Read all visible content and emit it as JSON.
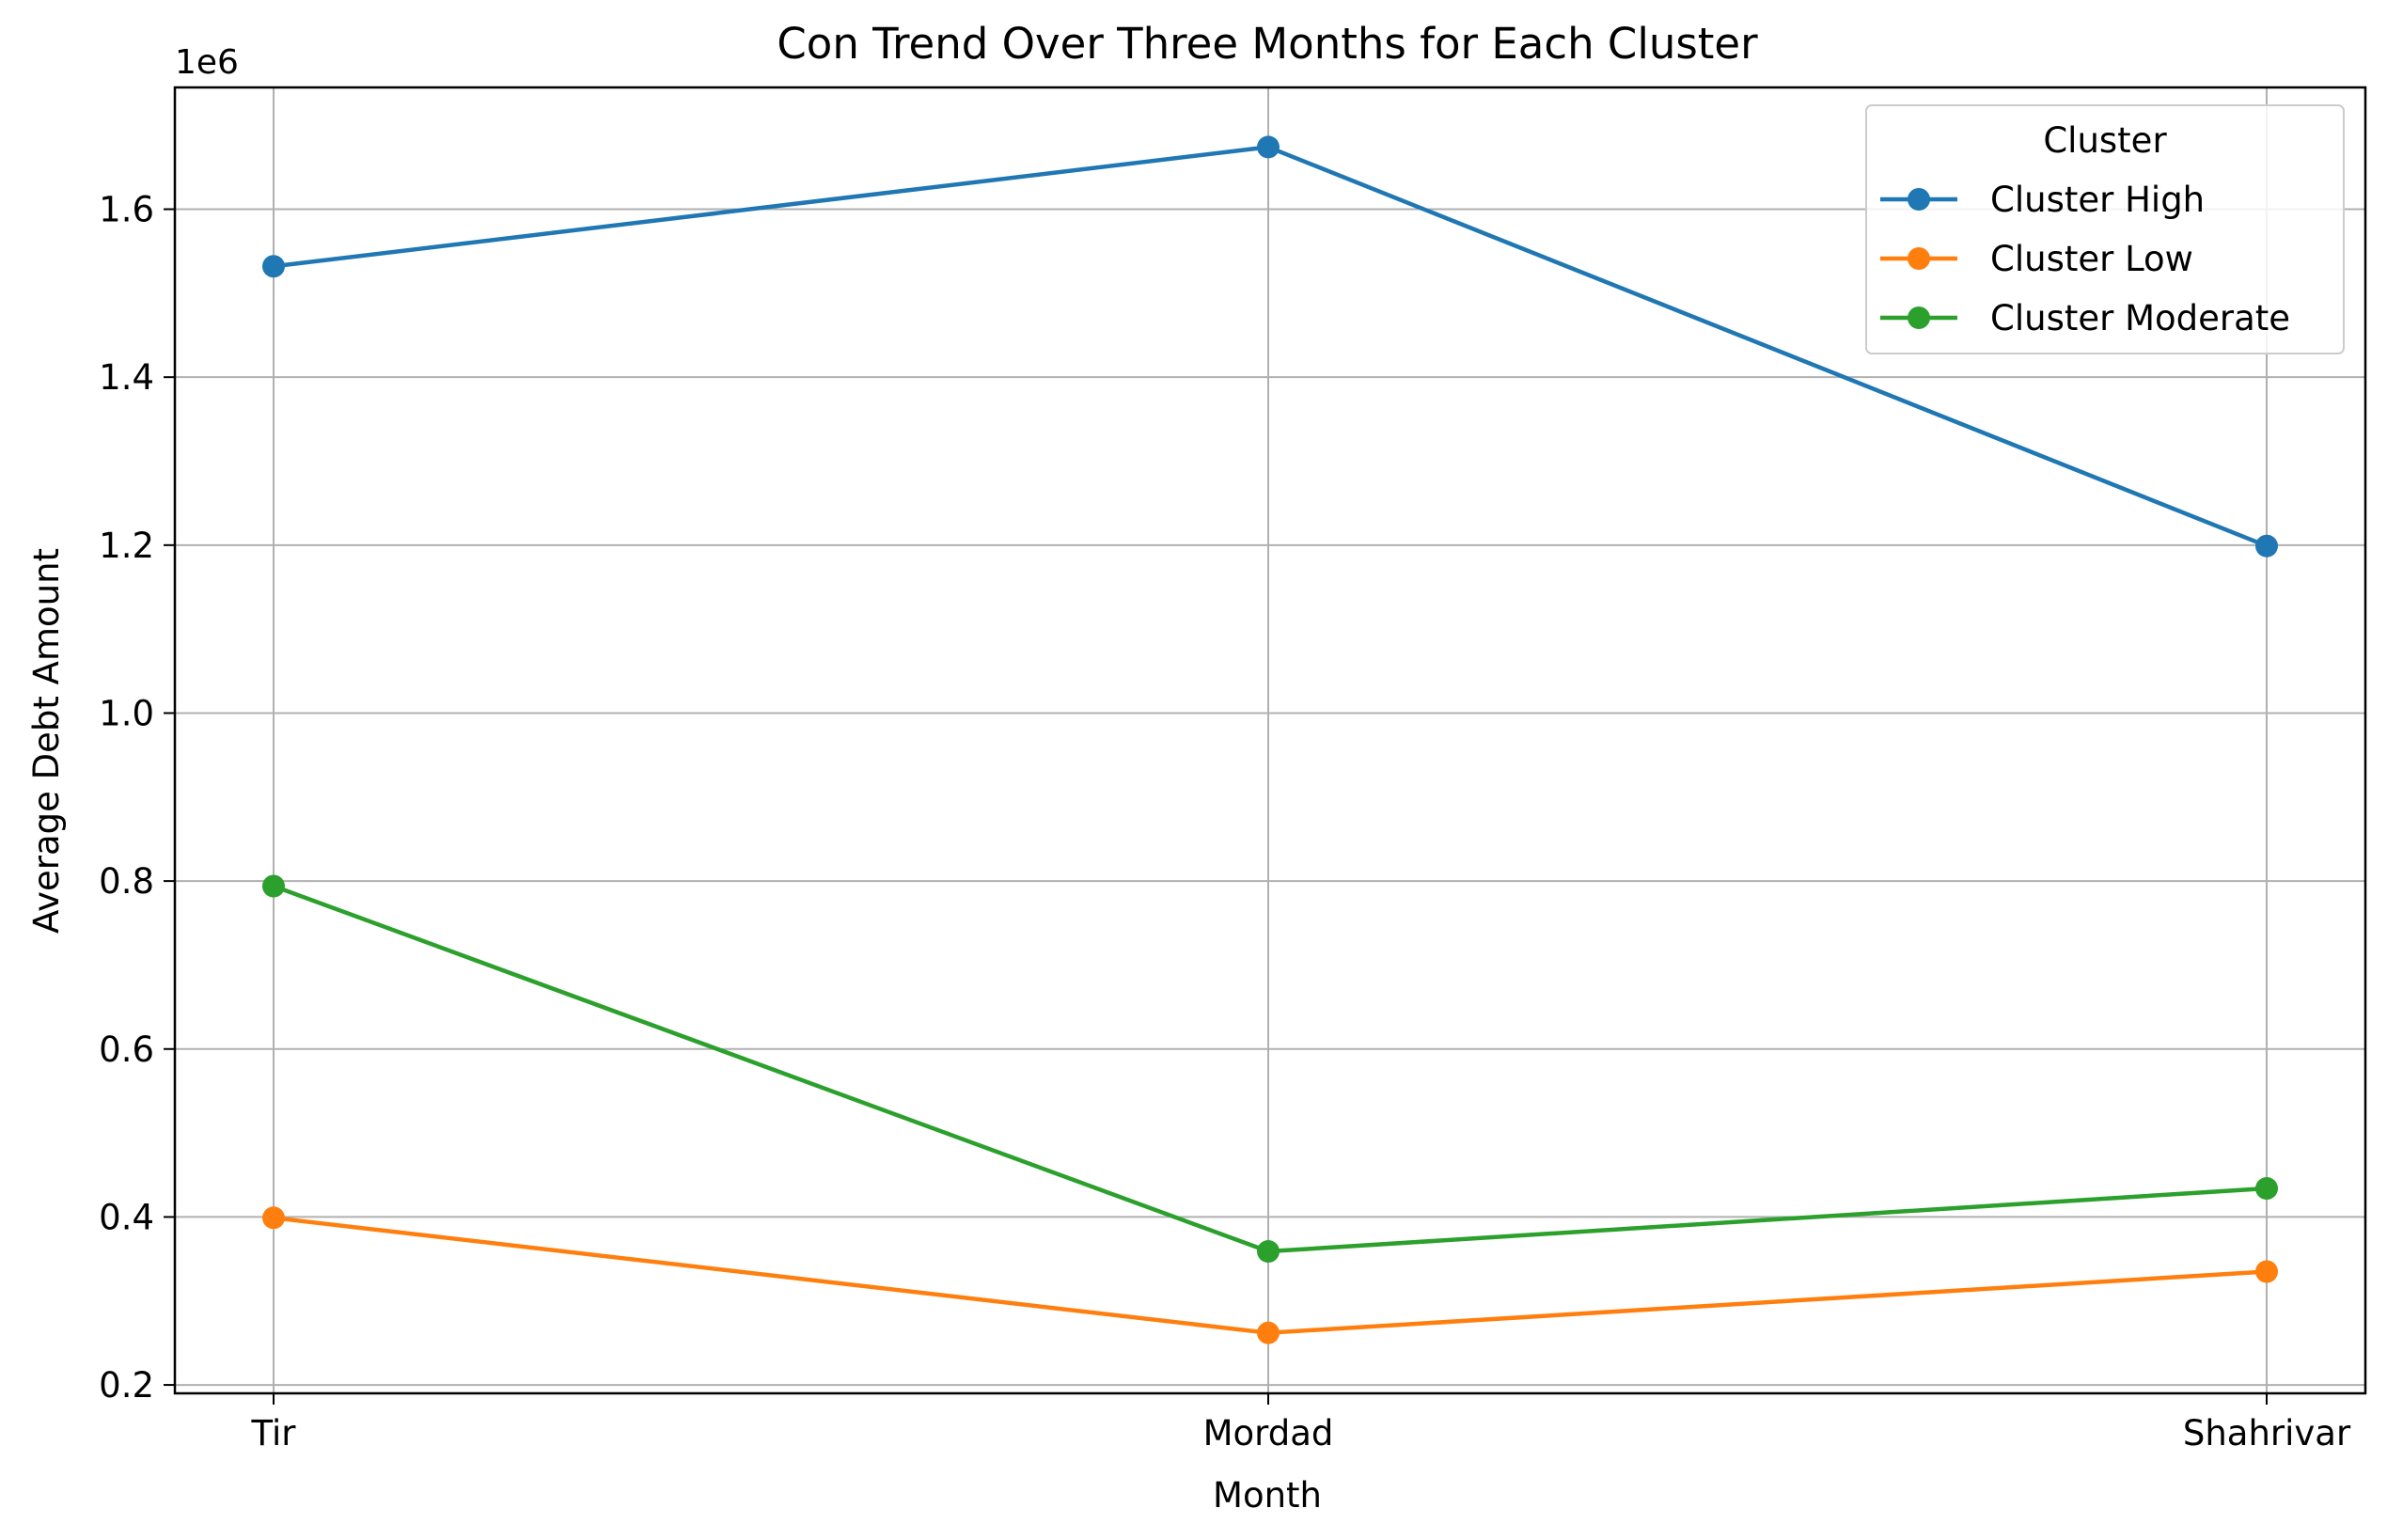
{
  "chart_data": {
    "type": "line",
    "title": "Con Trend Over Three Months for Each Cluster",
    "xlabel": "Month",
    "ylabel": "Average Debt Amount",
    "y_offset_label": "1e6",
    "categories": [
      "Tir",
      "Mordad",
      "Shahrivar"
    ],
    "ylim": [
      0.19,
      1.745
    ],
    "yticks": [
      0.2,
      0.4,
      0.6,
      0.8,
      1.0,
      1.2,
      1.4,
      1.6
    ],
    "ytick_labels": [
      "0.2",
      "0.4",
      "0.6",
      "0.8",
      "1.0",
      "1.2",
      "1.4",
      "1.6"
    ],
    "grid": true,
    "legend": {
      "title": "Cluster",
      "placement": "top-right"
    },
    "series": [
      {
        "name": "Cluster High",
        "color": "#1f77b4",
        "values": [
          1.532,
          1.674,
          1.199
        ]
      },
      {
        "name": "Cluster Low",
        "color": "#ff7f0e",
        "values": [
          0.399,
          0.262,
          0.335
        ]
      },
      {
        "name": "Cluster Moderate",
        "color": "#2ca02c",
        "values": [
          0.794,
          0.359,
          0.434
        ]
      }
    ]
  }
}
